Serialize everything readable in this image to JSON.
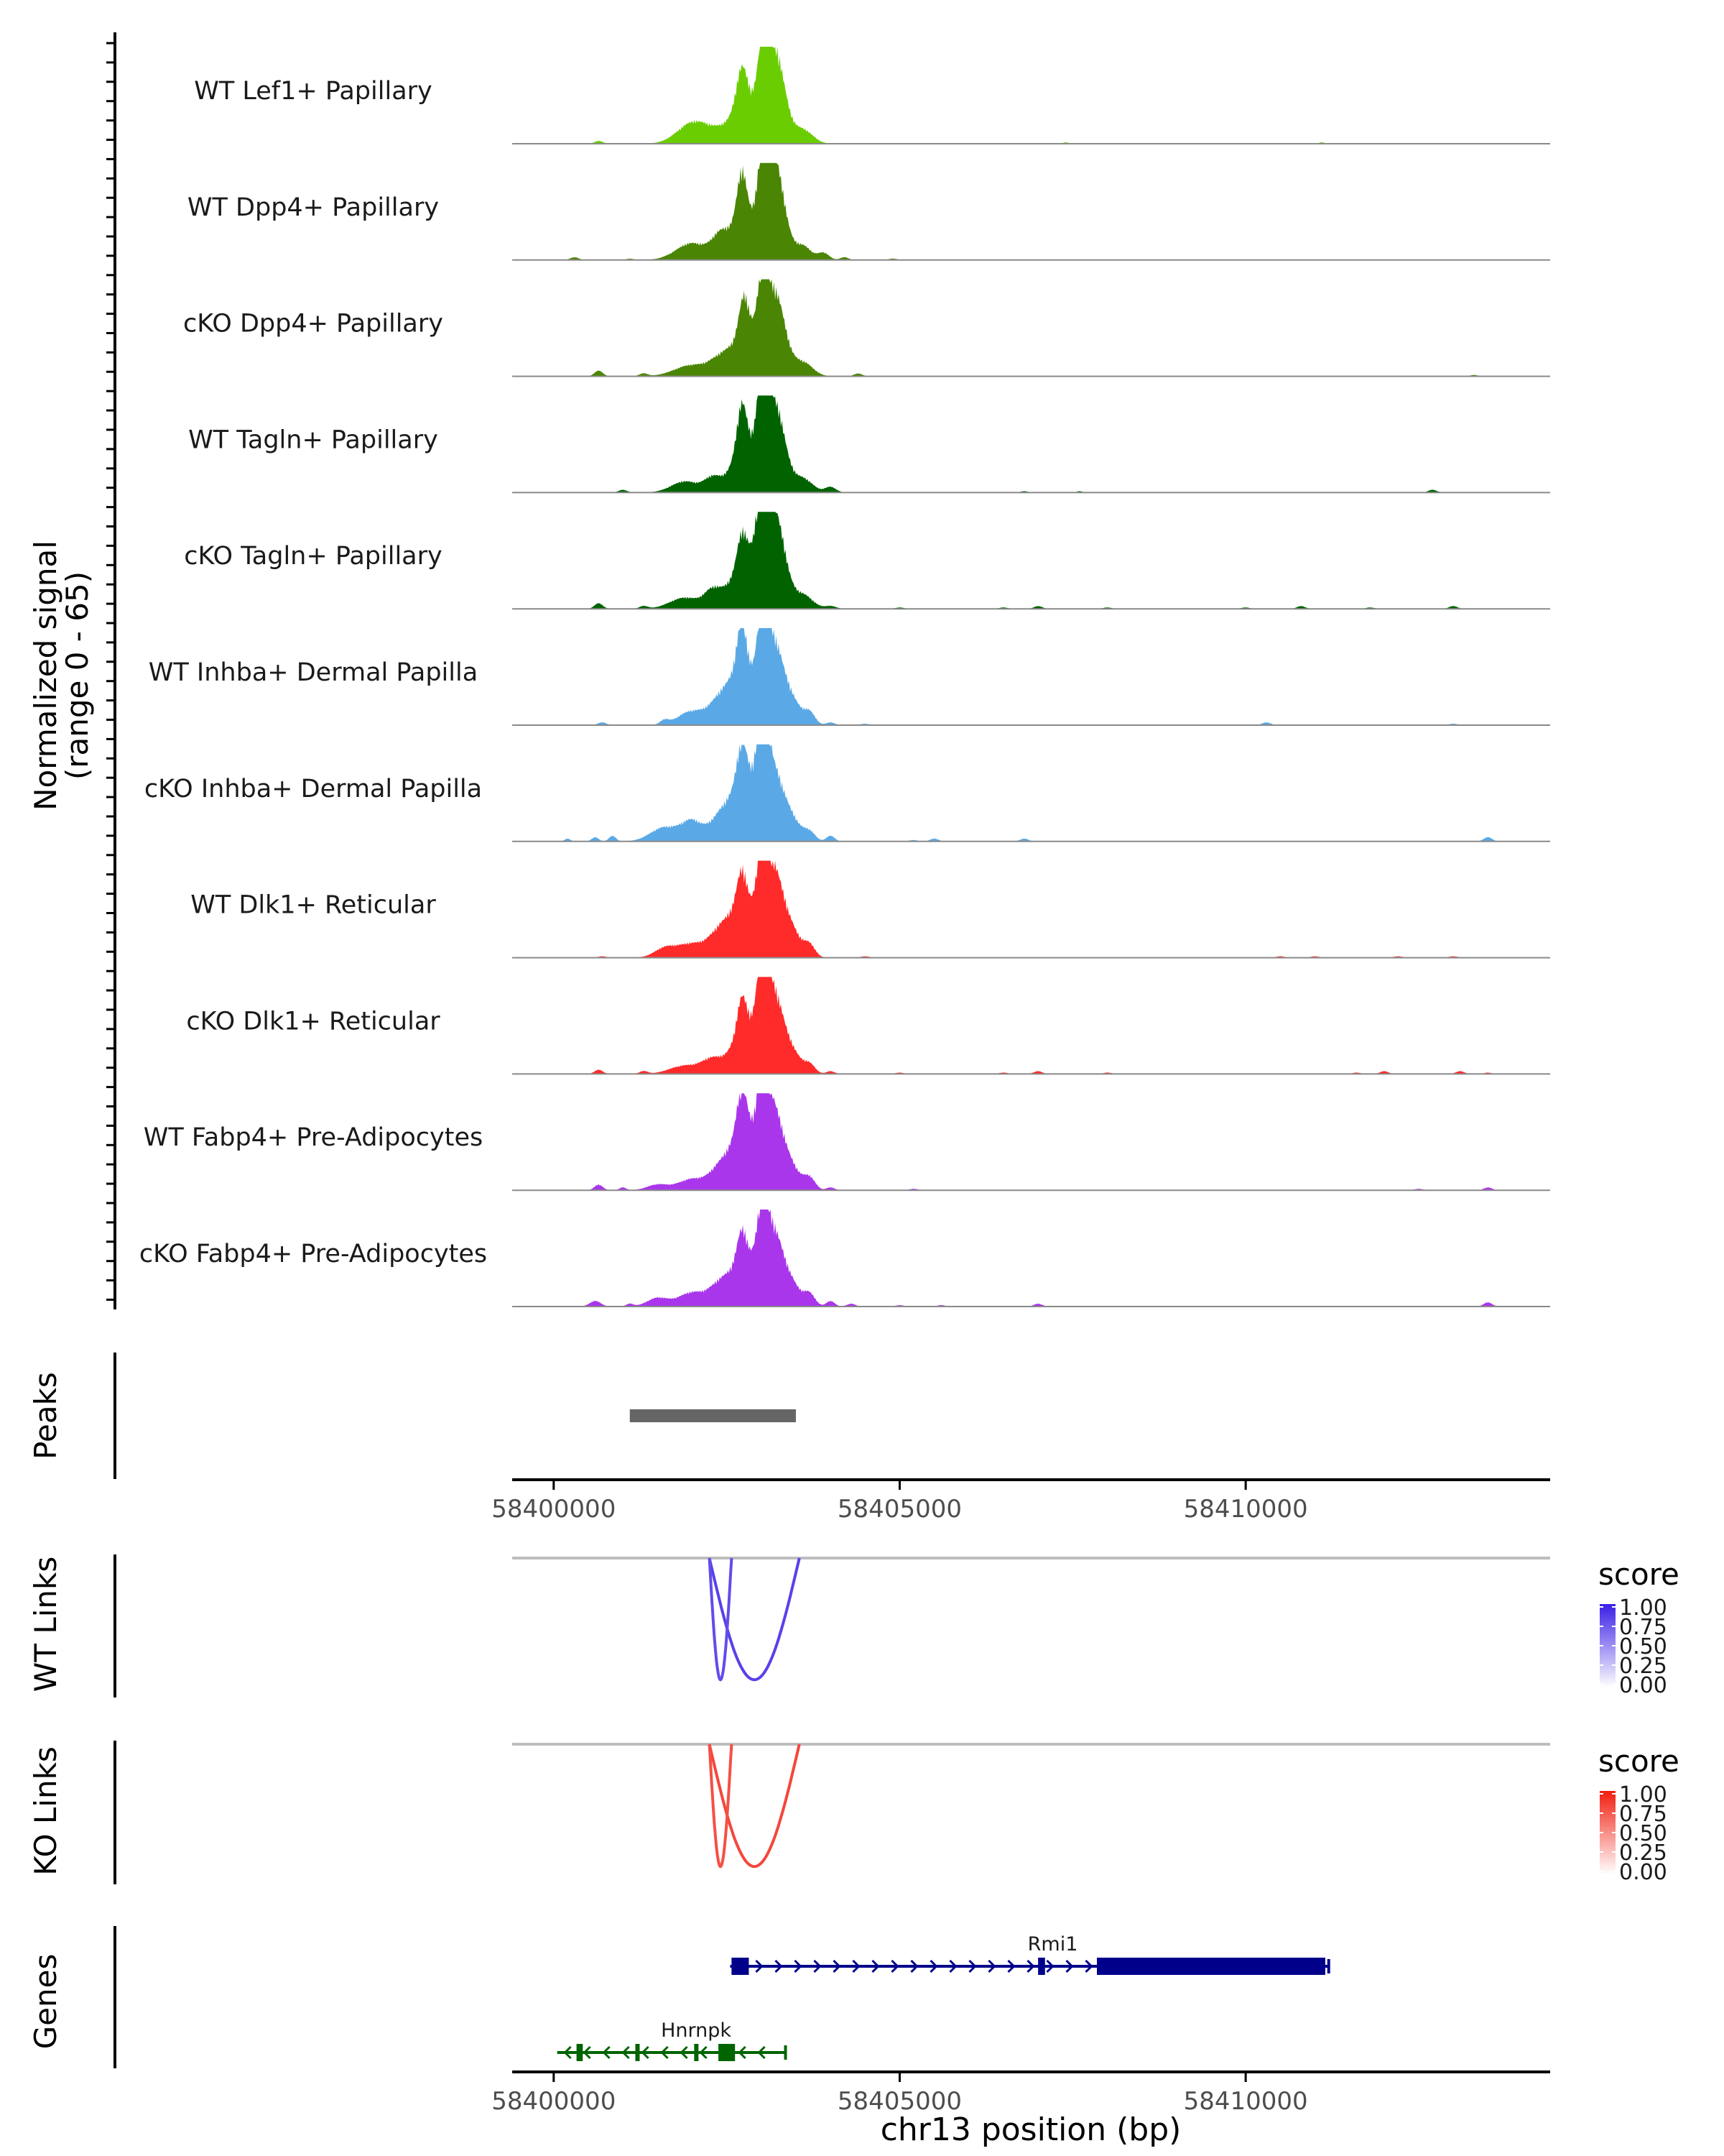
{
  "chart_data": {
    "type": "area",
    "title": "",
    "region": "chr13",
    "xlabel": "chr13 position (bp)",
    "xlim": [
      58399400,
      58414400
    ],
    "xticks": [
      58400000,
      58405000,
      58410000
    ],
    "xtick_labels": [
      "58400000",
      "58405000",
      "58410000"
    ],
    "coverage": {
      "ylabel_line1": "Normalized signal",
      "ylabel_line2": "(range 0 - 65)",
      "ylim": [
        0,
        65
      ],
      "tracks": [
        {
          "name": "WT Lef1+ Papillary",
          "color": "#6ACD02",
          "peaks": [
            [
              58402000,
              14,
              220
            ],
            [
              58402300,
              5,
              200
            ],
            [
              58402650,
              14,
              190
            ],
            [
              58402720,
              30,
              80
            ],
            [
              58402950,
              22,
              200
            ],
            [
              58403020,
              40,
              70
            ],
            [
              58403180,
              45,
              120
            ],
            [
              58403300,
              18,
              120
            ],
            [
              58403600,
              10,
              140
            ],
            [
              58400650,
              2,
              60
            ],
            [
              58407400,
              1,
              40
            ],
            [
              58411100,
              1,
              40
            ]
          ]
        },
        {
          "name": "WT Dpp4+ Papillary",
          "color": "#4A8503",
          "peaks": [
            [
              58400300,
              2,
              60
            ],
            [
              58401100,
              1,
              50
            ],
            [
              58402000,
              12,
              230
            ],
            [
              58402400,
              14,
              120
            ],
            [
              58402650,
              16,
              150
            ],
            [
              58402720,
              36,
              70
            ],
            [
              58402950,
              25,
              200
            ],
            [
              58403020,
              42,
              70
            ],
            [
              58403180,
              50,
              120
            ],
            [
              58403300,
              16,
              120
            ],
            [
              58403600,
              10,
              120
            ],
            [
              58403900,
              5,
              80
            ],
            [
              58404200,
              2,
              60
            ],
            [
              58404900,
              1,
              60
            ]
          ]
        },
        {
          "name": "cKO Dpp4+ Papillary",
          "color": "#4A8503",
          "peaks": [
            [
              58400650,
              4,
              60
            ],
            [
              58401300,
              2,
              60
            ],
            [
              58402000,
              8,
              250
            ],
            [
              58402400,
              10,
              150
            ],
            [
              58402650,
              14,
              150
            ],
            [
              58402750,
              30,
              70
            ],
            [
              58402950,
              26,
              200
            ],
            [
              58403020,
              44,
              70
            ],
            [
              58403180,
              36,
              120
            ],
            [
              58403300,
              18,
              120
            ],
            [
              58403600,
              10,
              140
            ],
            [
              58404400,
              2,
              60
            ],
            [
              58413300,
              1,
              50
            ]
          ]
        },
        {
          "name": "WT Tagln+ Papillary",
          "color": "#006300",
          "peaks": [
            [
              58401000,
              2,
              60
            ],
            [
              58401900,
              8,
              200
            ],
            [
              58402300,
              10,
              120
            ],
            [
              58402650,
              16,
              150
            ],
            [
              58402720,
              34,
              70
            ],
            [
              58402950,
              30,
              200
            ],
            [
              58403020,
              55,
              70
            ],
            [
              58403180,
              38,
              120
            ],
            [
              58403300,
              18,
              120
            ],
            [
              58403600,
              10,
              140
            ],
            [
              58404000,
              4,
              80
            ],
            [
              58406800,
              1,
              50
            ],
            [
              58407600,
              1,
              40
            ],
            [
              58412700,
              2,
              60
            ]
          ]
        },
        {
          "name": "cKO Tagln+ Papillary",
          "color": "#006300",
          "peaks": [
            [
              58400650,
              4,
              60
            ],
            [
              58401300,
              2,
              60
            ],
            [
              58401900,
              8,
              220
            ],
            [
              58402300,
              12,
              120
            ],
            [
              58402600,
              14,
              150
            ],
            [
              58402720,
              24,
              70
            ],
            [
              58402950,
              40,
              200
            ],
            [
              58403020,
              52,
              70
            ],
            [
              58403180,
              38,
              120
            ],
            [
              58403300,
              20,
              120
            ],
            [
              58403600,
              10,
              140
            ],
            [
              58404000,
              2,
              80
            ],
            [
              58405000,
              1,
              60
            ],
            [
              58406500,
              1,
              60
            ],
            [
              58407000,
              2,
              60
            ],
            [
              58408000,
              1,
              60
            ],
            [
              58410000,
              1,
              60
            ],
            [
              58410800,
              2,
              60
            ],
            [
              58411800,
              1,
              60
            ],
            [
              58413000,
              2,
              60
            ]
          ]
        },
        {
          "name": "WT Inhba+ Dermal Papilla",
          "color": "#5AA9E6",
          "peaks": [
            [
              58400700,
              2,
              60
            ],
            [
              58401600,
              3,
              60
            ],
            [
              58402000,
              10,
              200
            ],
            [
              58402400,
              16,
              150
            ],
            [
              58402650,
              24,
              150
            ],
            [
              58402720,
              36,
              70
            ],
            [
              58402950,
              28,
              200
            ],
            [
              58403020,
              52,
              70
            ],
            [
              58403180,
              40,
              120
            ],
            [
              58403400,
              20,
              150
            ],
            [
              58403700,
              8,
              80
            ],
            [
              58404000,
              2,
              60
            ],
            [
              58404500,
              1,
              60
            ],
            [
              58410300,
              2,
              60
            ],
            [
              58413000,
              1,
              60
            ]
          ]
        },
        {
          "name": "cKO Inhba+ Dermal Papilla",
          "color": "#5AA9E6",
          "peaks": [
            [
              58400200,
              2,
              40
            ],
            [
              58400600,
              3,
              50
            ],
            [
              58400850,
              4,
              50
            ],
            [
              58401600,
              10,
              200
            ],
            [
              58402000,
              14,
              150
            ],
            [
              58402400,
              16,
              150
            ],
            [
              58402650,
              22,
              150
            ],
            [
              58402720,
              30,
              70
            ],
            [
              58402950,
              40,
              200
            ],
            [
              58403020,
              58,
              70
            ],
            [
              58403180,
              28,
              120
            ],
            [
              58403400,
              18,
              150
            ],
            [
              58403700,
              6,
              80
            ],
            [
              58404000,
              4,
              60
            ],
            [
              58405200,
              1,
              60
            ],
            [
              58405500,
              2,
              60
            ],
            [
              58406800,
              2,
              60
            ],
            [
              58413500,
              3,
              60
            ]
          ]
        },
        {
          "name": "WT Dlk1+ Reticular",
          "color": "#FF2A2A",
          "peaks": [
            [
              58400700,
              1,
              60
            ],
            [
              58401600,
              6,
              150
            ],
            [
              58402000,
              10,
              220
            ],
            [
              58402400,
              16,
              150
            ],
            [
              58402650,
              22,
              150
            ],
            [
              58402720,
              26,
              70
            ],
            [
              58402950,
              30,
              200
            ],
            [
              58403020,
              50,
              70
            ],
            [
              58403180,
              42,
              120
            ],
            [
              58403400,
              22,
              150
            ],
            [
              58403700,
              8,
              80
            ],
            [
              58404500,
              1,
              60
            ],
            [
              58410500,
              1,
              60
            ],
            [
              58411000,
              1,
              60
            ],
            [
              58412200,
              1,
              60
            ],
            [
              58413000,
              1,
              60
            ]
          ]
        },
        {
          "name": "cKO Dlk1+ Reticular",
          "color": "#FF2A2A",
          "peaks": [
            [
              58400650,
              3,
              60
            ],
            [
              58401300,
              2,
              60
            ],
            [
              58401900,
              6,
              220
            ],
            [
              58402300,
              10,
              150
            ],
            [
              58402650,
              14,
              150
            ],
            [
              58402720,
              26,
              70
            ],
            [
              58402950,
              32,
              200
            ],
            [
              58403020,
              54,
              70
            ],
            [
              58403180,
              38,
              120
            ],
            [
              58403400,
              18,
              150
            ],
            [
              58403700,
              6,
              80
            ],
            [
              58404000,
              2,
              60
            ],
            [
              58405000,
              1,
              60
            ],
            [
              58406500,
              1,
              60
            ],
            [
              58407000,
              2,
              60
            ],
            [
              58408000,
              1,
              60
            ],
            [
              58411600,
              1,
              60
            ],
            [
              58412000,
              2,
              60
            ],
            [
              58413100,
              2,
              60
            ],
            [
              58413500,
              1,
              50
            ]
          ]
        },
        {
          "name": "WT Fabp4+ Pre-Adipocytes",
          "color": "#AA36EB",
          "peaks": [
            [
              58400650,
              4,
              60
            ],
            [
              58401000,
              2,
              50
            ],
            [
              58401500,
              4,
              150
            ],
            [
              58402000,
              8,
              200
            ],
            [
              58402400,
              14,
              150
            ],
            [
              58402650,
              22,
              150
            ],
            [
              58402720,
              34,
              70
            ],
            [
              58402950,
              38,
              200
            ],
            [
              58403020,
              44,
              70
            ],
            [
              58403180,
              36,
              120
            ],
            [
              58403400,
              18,
              150
            ],
            [
              58403700,
              8,
              80
            ],
            [
              58404000,
              2,
              60
            ],
            [
              58405200,
              1,
              60
            ],
            [
              58412500,
              1,
              60
            ],
            [
              58413500,
              2,
              60
            ]
          ]
        },
        {
          "name": "cKO Fabp4+ Pre-Adipocytes",
          "color": "#AA36EB",
          "peaks": [
            [
              58400600,
              4,
              80
            ],
            [
              58401100,
              2,
              50
            ],
            [
              58401500,
              6,
              150
            ],
            [
              58402000,
              10,
              200
            ],
            [
              58402400,
              14,
              150
            ],
            [
              58402650,
              16,
              150
            ],
            [
              58402720,
              24,
              70
            ],
            [
              58402950,
              30,
              200
            ],
            [
              58403020,
              42,
              70
            ],
            [
              58403180,
              34,
              120
            ],
            [
              58403400,
              18,
              150
            ],
            [
              58403700,
              8,
              80
            ],
            [
              58404000,
              4,
              60
            ],
            [
              58404300,
              2,
              60
            ],
            [
              58405000,
              1,
              60
            ],
            [
              58405600,
              1,
              60
            ],
            [
              58407000,
              2,
              60
            ],
            [
              58413500,
              3,
              60
            ]
          ]
        }
      ]
    },
    "peaks_track": {
      "label": "Peaks",
      "color": "#666666",
      "regions": [
        [
          58401100,
          58403500
        ]
      ]
    },
    "wt_links": {
      "label": "WT Links",
      "legend_title": "score",
      "legend_ticks": [
        "1.00",
        "0.75",
        "0.50",
        "0.25",
        "0.00"
      ],
      "color_high": "#3A1FE6",
      "color_low": "#ffffff",
      "arcs": [
        {
          "start": 58402250,
          "end": 58403550,
          "score": 0.85,
          "depth": 0.92
        },
        {
          "start": 58402250,
          "end": 58402570,
          "score": 0.8,
          "depth": 0.92
        }
      ]
    },
    "ko_links": {
      "label": "KO Links",
      "legend_title": "score",
      "legend_ticks": [
        "1.00",
        "0.75",
        "0.50",
        "0.25",
        "0.00"
      ],
      "color_high": "#F21E10",
      "color_low": "#ffffff",
      "arcs": [
        {
          "start": 58402250,
          "end": 58403550,
          "score": 0.82,
          "depth": 0.92
        },
        {
          "start": 58402250,
          "end": 58402570,
          "score": 0.78,
          "depth": 0.92
        }
      ]
    },
    "genes": {
      "label": "Genes",
      "items": [
        {
          "name": "Rmi1",
          "strand": "+",
          "color": "#00008B",
          "start": 58402550,
          "end": 58411200,
          "exons": [
            [
              58402570,
              58402820
            ],
            [
              58407000,
              58407100
            ],
            [
              58407850,
              58411150
            ]
          ]
        },
        {
          "name": "Hnrnpk",
          "strand": "-",
          "color": "#006400",
          "start": 58400050,
          "end": 58403350,
          "exons": [
            [
              58400330,
              58400420
            ],
            [
              58401180,
              58401240
            ],
            [
              58402030,
              58402090
            ],
            [
              58402380,
              58402620
            ]
          ]
        }
      ]
    }
  }
}
